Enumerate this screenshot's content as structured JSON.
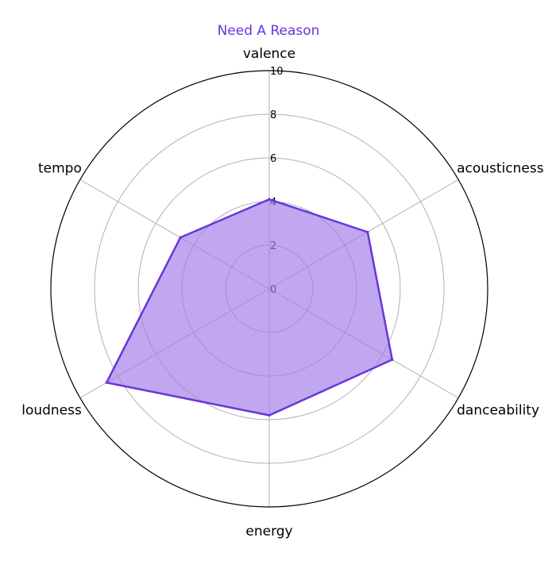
{
  "chart_data": {
    "type": "radar",
    "title": "Need A Reason",
    "axes": [
      "valence",
      "acousticness",
      "danceability",
      "energy",
      "loudness",
      "tempo"
    ],
    "series": [
      {
        "values": [
          4.1,
          5.2,
          6.5,
          5.8,
          8.6,
          4.7
        ]
      }
    ],
    "rlim": [
      0,
      10
    ],
    "rticks": [
      0,
      2,
      4,
      6,
      8,
      10
    ],
    "grid": true,
    "colors": {
      "line": "#6a35d9",
      "fill": "#a47ee8",
      "title": "#6a35d9"
    }
  }
}
